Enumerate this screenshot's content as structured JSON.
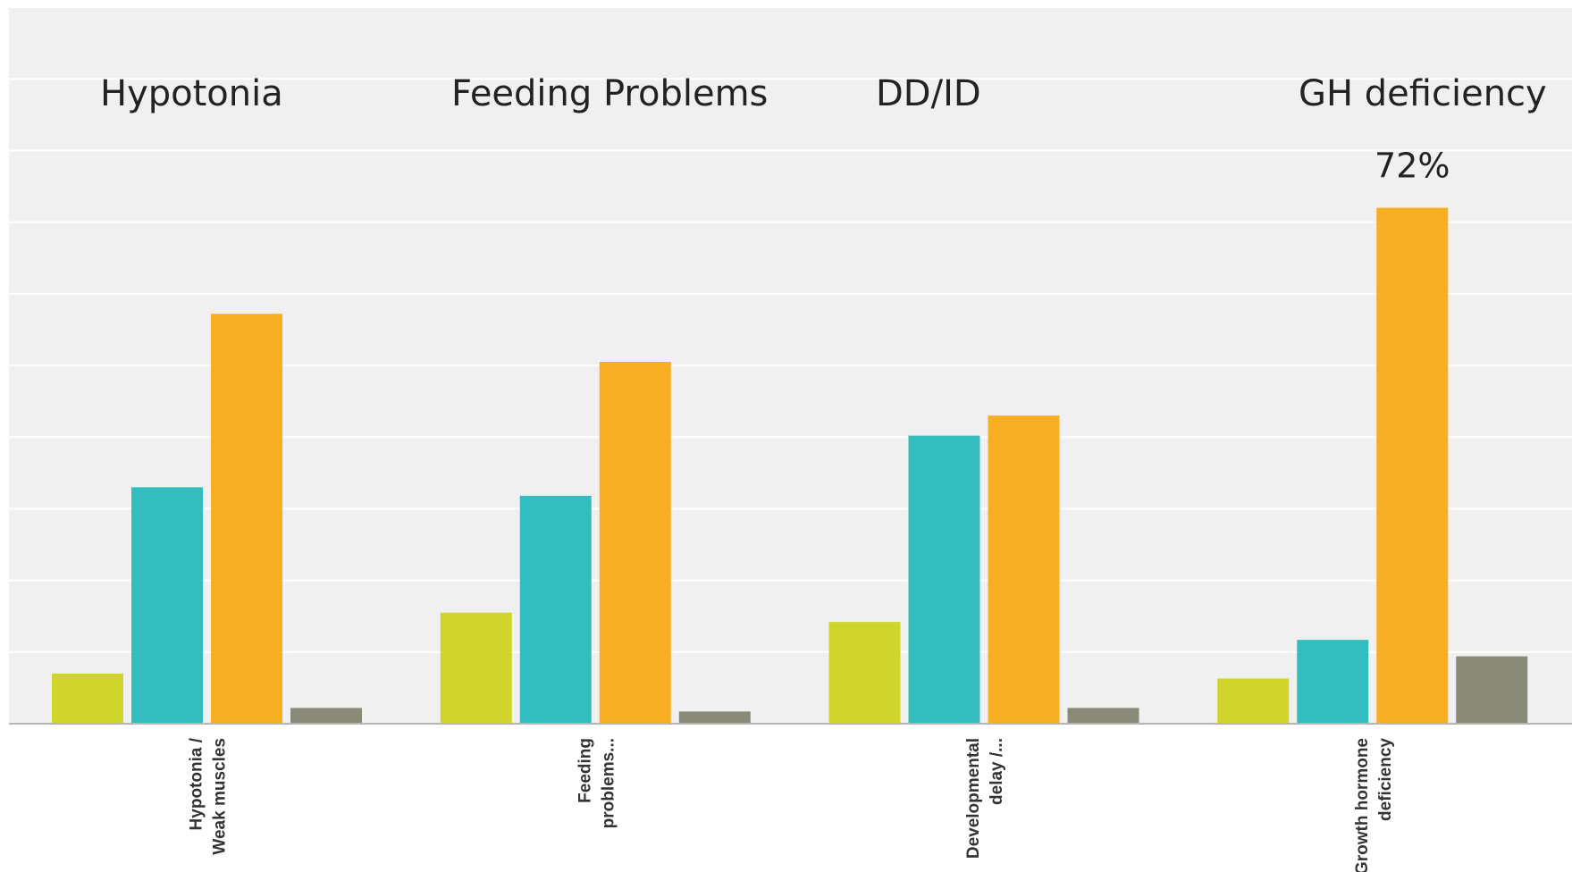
{
  "chart_data": {
    "type": "bar",
    "categories": [
      "Hypotonia / Weak muscles",
      "Feeding problems...",
      "Developmental delay /...",
      "Growth hormone deficiency"
    ],
    "tick_label_lines": [
      [
        "Hypotonia /",
        "Weak muscles"
      ],
      [
        "Feeding",
        "problems..."
      ],
      [
        "Developmental",
        "delay /..."
      ],
      [
        "Growth hormone",
        "deficiency"
      ]
    ],
    "category_headings": [
      "Hypotonia",
      "Feeding Problems",
      "DD/ID",
      "GH deficiency"
    ],
    "series": [
      {
        "color": "#cfd52a",
        "values": [
          7,
          15.5,
          14.2,
          6.3
        ]
      },
      {
        "color": "#33bdbf",
        "values": [
          33,
          31.8,
          40.2,
          11.7
        ]
      },
      {
        "color": "#f6ae22",
        "values": [
          57.2,
          50.5,
          43,
          72
        ]
      },
      {
        "color": "#8a8a78",
        "values": [
          2.2,
          1.7,
          2.2,
          9.4
        ]
      }
    ],
    "annotations": [
      {
        "text": "72%",
        "category_index": 3,
        "series_index": 2
      }
    ],
    "ylim": [
      0,
      100
    ],
    "y_grid_step": 10,
    "grid": true,
    "y_axis_labels_visible": false,
    "background_color": "#f0f0f0",
    "gridline_color": "#ffffff"
  }
}
